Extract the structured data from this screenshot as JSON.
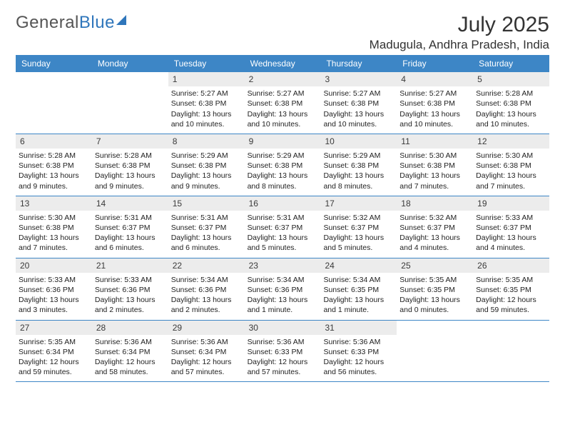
{
  "logo": {
    "text_gray": "General",
    "text_blue": "Blue"
  },
  "title": "July 2025",
  "location": "Madugula, Andhra Pradesh, India",
  "colors": {
    "header_bg": "#3d86c6",
    "daynum_bg": "#ececec",
    "rule": "#3d86c6",
    "text": "#222222"
  },
  "dow": [
    "Sunday",
    "Monday",
    "Tuesday",
    "Wednesday",
    "Thursday",
    "Friday",
    "Saturday"
  ],
  "weeks": [
    [
      {
        "empty": true
      },
      {
        "empty": true
      },
      {
        "n": "1",
        "sr": "Sunrise: 5:27 AM",
        "ss": "Sunset: 6:38 PM",
        "dl": "Daylight: 13 hours and 10 minutes."
      },
      {
        "n": "2",
        "sr": "Sunrise: 5:27 AM",
        "ss": "Sunset: 6:38 PM",
        "dl": "Daylight: 13 hours and 10 minutes."
      },
      {
        "n": "3",
        "sr": "Sunrise: 5:27 AM",
        "ss": "Sunset: 6:38 PM",
        "dl": "Daylight: 13 hours and 10 minutes."
      },
      {
        "n": "4",
        "sr": "Sunrise: 5:27 AM",
        "ss": "Sunset: 6:38 PM",
        "dl": "Daylight: 13 hours and 10 minutes."
      },
      {
        "n": "5",
        "sr": "Sunrise: 5:28 AM",
        "ss": "Sunset: 6:38 PM",
        "dl": "Daylight: 13 hours and 10 minutes."
      }
    ],
    [
      {
        "n": "6",
        "sr": "Sunrise: 5:28 AM",
        "ss": "Sunset: 6:38 PM",
        "dl": "Daylight: 13 hours and 9 minutes."
      },
      {
        "n": "7",
        "sr": "Sunrise: 5:28 AM",
        "ss": "Sunset: 6:38 PM",
        "dl": "Daylight: 13 hours and 9 minutes."
      },
      {
        "n": "8",
        "sr": "Sunrise: 5:29 AM",
        "ss": "Sunset: 6:38 PM",
        "dl": "Daylight: 13 hours and 9 minutes."
      },
      {
        "n": "9",
        "sr": "Sunrise: 5:29 AM",
        "ss": "Sunset: 6:38 PM",
        "dl": "Daylight: 13 hours and 8 minutes."
      },
      {
        "n": "10",
        "sr": "Sunrise: 5:29 AM",
        "ss": "Sunset: 6:38 PM",
        "dl": "Daylight: 13 hours and 8 minutes."
      },
      {
        "n": "11",
        "sr": "Sunrise: 5:30 AM",
        "ss": "Sunset: 6:38 PM",
        "dl": "Daylight: 13 hours and 7 minutes."
      },
      {
        "n": "12",
        "sr": "Sunrise: 5:30 AM",
        "ss": "Sunset: 6:38 PM",
        "dl": "Daylight: 13 hours and 7 minutes."
      }
    ],
    [
      {
        "n": "13",
        "sr": "Sunrise: 5:30 AM",
        "ss": "Sunset: 6:38 PM",
        "dl": "Daylight: 13 hours and 7 minutes."
      },
      {
        "n": "14",
        "sr": "Sunrise: 5:31 AM",
        "ss": "Sunset: 6:37 PM",
        "dl": "Daylight: 13 hours and 6 minutes."
      },
      {
        "n": "15",
        "sr": "Sunrise: 5:31 AM",
        "ss": "Sunset: 6:37 PM",
        "dl": "Daylight: 13 hours and 6 minutes."
      },
      {
        "n": "16",
        "sr": "Sunrise: 5:31 AM",
        "ss": "Sunset: 6:37 PM",
        "dl": "Daylight: 13 hours and 5 minutes."
      },
      {
        "n": "17",
        "sr": "Sunrise: 5:32 AM",
        "ss": "Sunset: 6:37 PM",
        "dl": "Daylight: 13 hours and 5 minutes."
      },
      {
        "n": "18",
        "sr": "Sunrise: 5:32 AM",
        "ss": "Sunset: 6:37 PM",
        "dl": "Daylight: 13 hours and 4 minutes."
      },
      {
        "n": "19",
        "sr": "Sunrise: 5:33 AM",
        "ss": "Sunset: 6:37 PM",
        "dl": "Daylight: 13 hours and 4 minutes."
      }
    ],
    [
      {
        "n": "20",
        "sr": "Sunrise: 5:33 AM",
        "ss": "Sunset: 6:36 PM",
        "dl": "Daylight: 13 hours and 3 minutes."
      },
      {
        "n": "21",
        "sr": "Sunrise: 5:33 AM",
        "ss": "Sunset: 6:36 PM",
        "dl": "Daylight: 13 hours and 2 minutes."
      },
      {
        "n": "22",
        "sr": "Sunrise: 5:34 AM",
        "ss": "Sunset: 6:36 PM",
        "dl": "Daylight: 13 hours and 2 minutes."
      },
      {
        "n": "23",
        "sr": "Sunrise: 5:34 AM",
        "ss": "Sunset: 6:36 PM",
        "dl": "Daylight: 13 hours and 1 minute."
      },
      {
        "n": "24",
        "sr": "Sunrise: 5:34 AM",
        "ss": "Sunset: 6:35 PM",
        "dl": "Daylight: 13 hours and 1 minute."
      },
      {
        "n": "25",
        "sr": "Sunrise: 5:35 AM",
        "ss": "Sunset: 6:35 PM",
        "dl": "Daylight: 13 hours and 0 minutes."
      },
      {
        "n": "26",
        "sr": "Sunrise: 5:35 AM",
        "ss": "Sunset: 6:35 PM",
        "dl": "Daylight: 12 hours and 59 minutes."
      }
    ],
    [
      {
        "n": "27",
        "sr": "Sunrise: 5:35 AM",
        "ss": "Sunset: 6:34 PM",
        "dl": "Daylight: 12 hours and 59 minutes."
      },
      {
        "n": "28",
        "sr": "Sunrise: 5:36 AM",
        "ss": "Sunset: 6:34 PM",
        "dl": "Daylight: 12 hours and 58 minutes."
      },
      {
        "n": "29",
        "sr": "Sunrise: 5:36 AM",
        "ss": "Sunset: 6:34 PM",
        "dl": "Daylight: 12 hours and 57 minutes."
      },
      {
        "n": "30",
        "sr": "Sunrise: 5:36 AM",
        "ss": "Sunset: 6:33 PM",
        "dl": "Daylight: 12 hours and 57 minutes."
      },
      {
        "n": "31",
        "sr": "Sunrise: 5:36 AM",
        "ss": "Sunset: 6:33 PM",
        "dl": "Daylight: 12 hours and 56 minutes."
      },
      {
        "empty": true
      },
      {
        "empty": true
      }
    ]
  ]
}
